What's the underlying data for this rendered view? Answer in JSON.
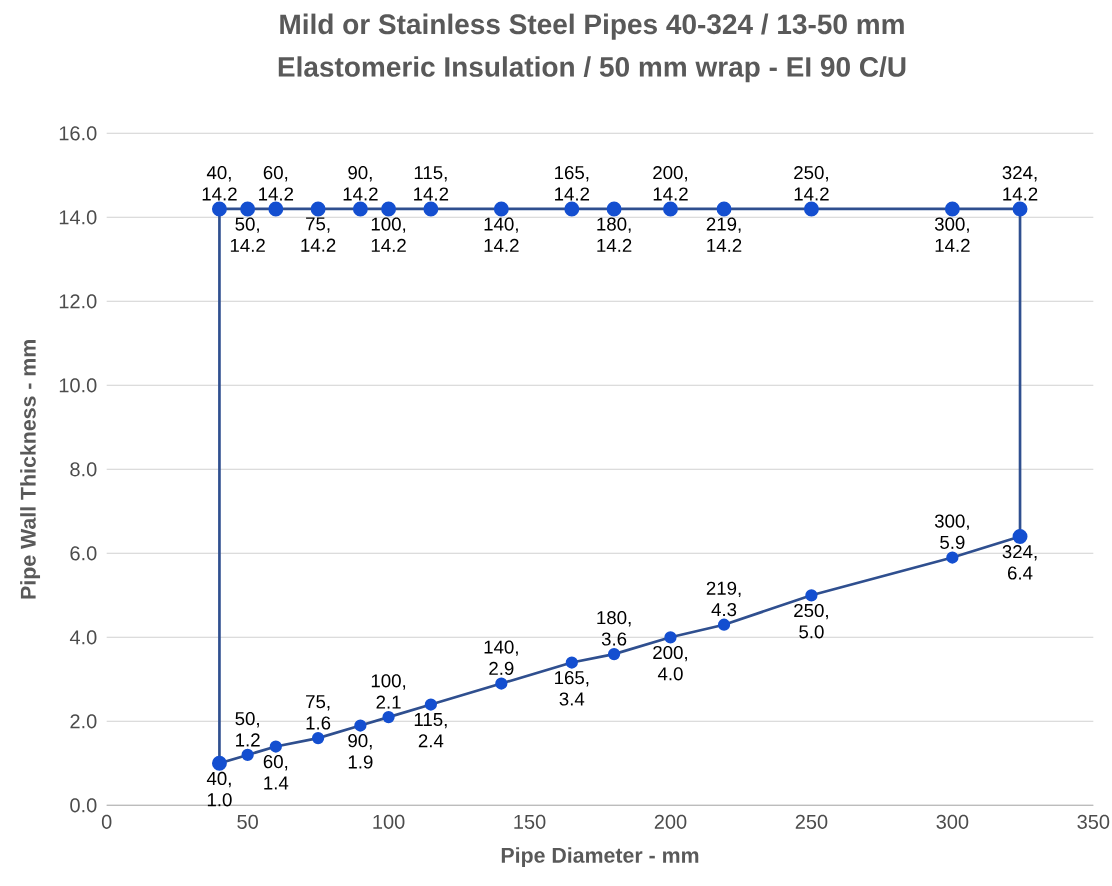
{
  "chart_data": {
    "type": "line",
    "title": "Mild or Stainless Steel Pipes 40-324 / 13-50 mm",
    "subtitle": "Elastomeric Insulation / 50 mm wrap - EI 90 C/U",
    "xlabel": "Pipe Diameter - mm",
    "ylabel": "Pipe Wall Thickness - mm",
    "series": [
      {
        "color": "#2f4f8f",
        "x": [
          40,
          40,
          50,
          60,
          75,
          90,
          100,
          115,
          140,
          165,
          180,
          200,
          219,
          250,
          300,
          324,
          324
        ],
        "values": [
          1.0,
          14.2,
          14.2,
          14.2,
          14.2,
          14.2,
          14.2,
          14.2,
          14.2,
          14.2,
          14.2,
          14.2,
          14.2,
          14.2,
          14.2,
          14.2,
          6.4
        ],
        "value_labels": [
          null,
          "40, 14.2",
          "50, 14.2",
          "60, 14.2",
          "75, 14.2",
          "90, 14.2",
          "100, 14.2",
          "115, 14.2",
          "140, 14.2",
          "165, 14.2",
          "180, 14.2",
          "200, 14.2",
          "219, 14.2",
          "250, 14.2",
          "300, 14.2",
          "324, 14.2",
          null
        ]
      },
      {
        "color": "#2f4f8f",
        "x": [
          40,
          50,
          60,
          75,
          90,
          100,
          115,
          140,
          165,
          180,
          200,
          219,
          250,
          300,
          324
        ],
        "values": [
          1.0,
          1.2,
          1.4,
          1.6,
          1.9,
          2.1,
          2.4,
          2.9,
          3.4,
          3.6,
          4.0,
          4.3,
          5.0,
          5.9,
          6.4
        ],
        "value_labels": [
          "40, 1.0",
          "50, 1.2",
          "60, 1.4",
          "75, 1.6",
          "90, 1.9",
          "100, 2.1",
          "115, 2.4",
          "140, 2.9",
          "165, 3.4",
          "180, 3.6",
          "200, 4.0",
          "219, 4.3",
          "250, 5.0",
          "300, 5.9",
          "324, 6.4"
        ]
      }
    ],
    "xlim": [
      0,
      350
    ],
    "xticks": [
      0,
      50,
      100,
      150,
      200,
      250,
      300,
      350
    ],
    "ylim": [
      0,
      16
    ],
    "yticks": [
      {
        "value": 0,
        "label": "0.0"
      },
      {
        "value": 2,
        "label": "2.0"
      },
      {
        "value": 4,
        "label": "4.0"
      },
      {
        "value": 6,
        "label": "6.0"
      },
      {
        "value": 8,
        "label": "8.0"
      },
      {
        "value": 10,
        "label": "10.0"
      },
      {
        "value": 12,
        "label": "12.0"
      },
      {
        "value": 14,
        "label": "14.0"
      },
      {
        "value": 16,
        "label": "16.0"
      }
    ],
    "grid": "y",
    "marker": "circle",
    "line_style": "solid"
  }
}
